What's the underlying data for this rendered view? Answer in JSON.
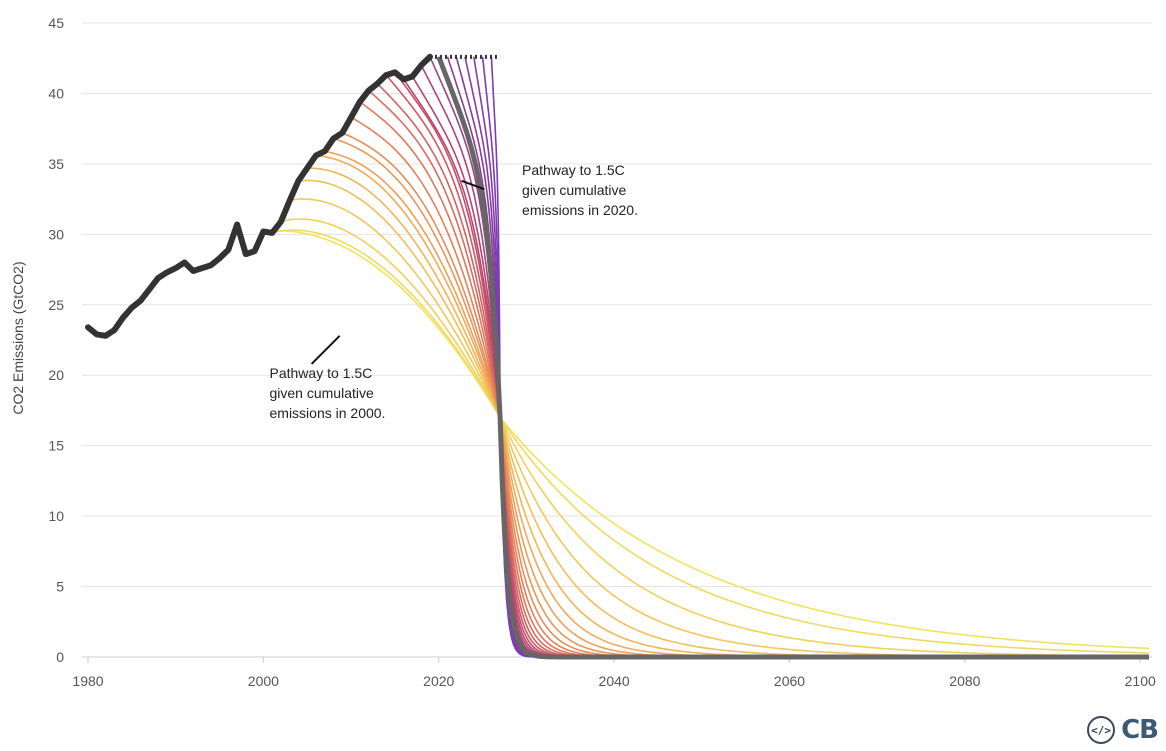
{
  "chart_data": {
    "type": "line",
    "title": "",
    "ylabel": "CO2 Emissions (GtCO2)",
    "xlabel": "",
    "xlim": [
      1980,
      2101
    ],
    "ylim": [
      0,
      45
    ],
    "x_ticks": [
      1980,
      2000,
      2020,
      2040,
      2060,
      2080,
      2100
    ],
    "y_ticks": [
      0,
      5,
      10,
      15,
      20,
      25,
      30,
      35,
      40,
      45
    ],
    "grid": "horizontal",
    "historical": {
      "x": [
        1980,
        1981,
        1982,
        1983,
        1984,
        1985,
        1986,
        1987,
        1988,
        1989,
        1990,
        1991,
        1992,
        1993,
        1994,
        1995,
        1996,
        1997,
        1998,
        1999,
        2000,
        2001,
        2002,
        2003,
        2004,
        2005,
        2006,
        2007,
        2008,
        2009,
        2010,
        2011,
        2012,
        2013,
        2014,
        2015,
        2016,
        2017,
        2018,
        2019
      ],
      "y": [
        23.4,
        22.9,
        22.8,
        23.2,
        24.1,
        24.8,
        25.3,
        26.1,
        26.9,
        27.3,
        27.6,
        28.0,
        27.4,
        27.6,
        27.8,
        28.3,
        28.9,
        30.7,
        28.6,
        28.8,
        30.2,
        30.1,
        30.9,
        32.4,
        33.8,
        34.7,
        35.6,
        35.9,
        36.8,
        37.2,
        38.3,
        39.4,
        40.2,
        40.7,
        41.3,
        41.5,
        41.0,
        41.2,
        42.0,
        42.6
      ]
    },
    "plateau": {
      "x": [
        2019,
        2027
      ],
      "y": 42.6
    },
    "pathways": {
      "count": 27,
      "start_year_first": 2000,
      "start_year_last": 2026,
      "pivot": {
        "x": 2027,
        "y": 17.0
      },
      "highlighted_start_year": 2020
    },
    "annotations": [
      {
        "text_lines": [
          "Pathway to 1.5C",
          "given cumulative",
          "emissions in 2020."
        ],
        "x": 2029.5,
        "y": 34.2,
        "pointer_from": [
          2025.2,
          33.2
        ],
        "pointer_to": [
          2022.6,
          33.8
        ]
      },
      {
        "text_lines": [
          "Pathway to 1.5C",
          "given cumulative",
          "emissions in 2000."
        ],
        "x": 2000.7,
        "y": 19.8,
        "pointer_from": [
          2005.5,
          20.8
        ],
        "pointer_to": [
          2008.7,
          22.8
        ]
      }
    ],
    "colors": {
      "historical": "#333333",
      "highlight": "#666666",
      "gradient": [
        "#f2e25c",
        "#f1b356",
        "#e57c57",
        "#c0496a",
        "#8e3b95",
        "#7a3cbb"
      ]
    }
  }
}
